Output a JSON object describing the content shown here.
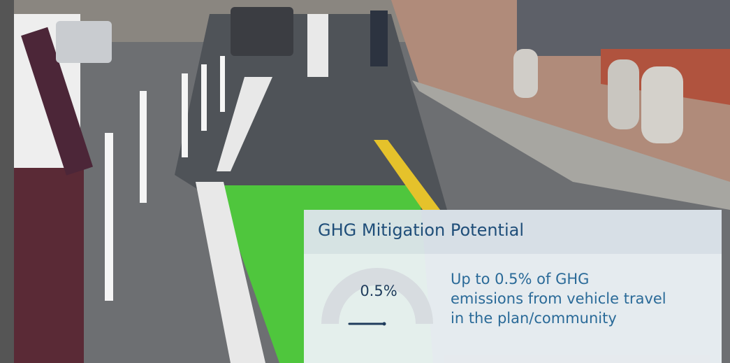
{
  "card": {
    "title": "GHG Mitigation Potential",
    "gauge_label": "0.5%",
    "description": [
      "Up to 0.5% of GHG",
      "emissions from vehicle travel",
      "in the plan/community"
    ]
  }
}
